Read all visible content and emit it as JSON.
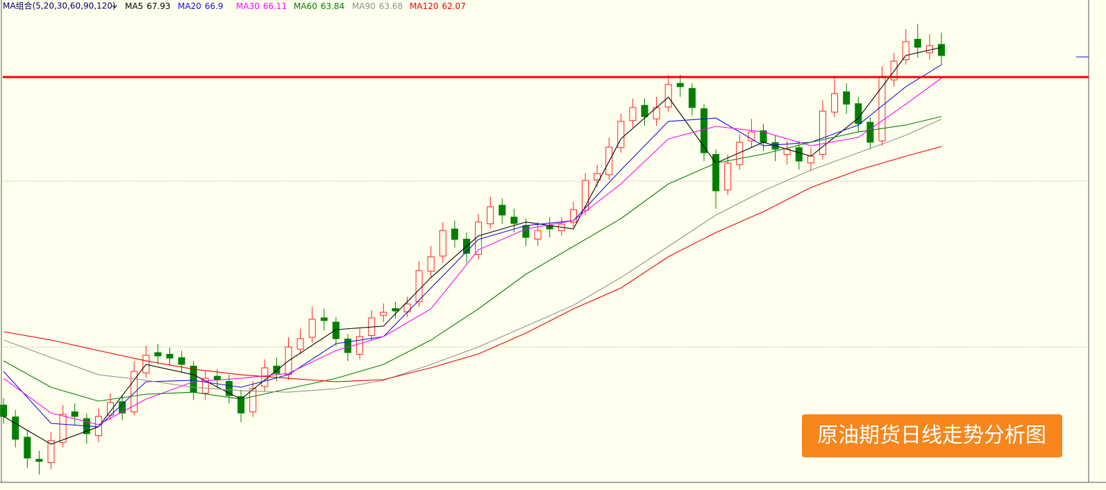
{
  "chart_data": {
    "type": "candlestick",
    "legend_title": "MA组合(5,20,30,60,90,120)",
    "annotation": "原油期货日线走势分析图",
    "up_color": "#ff2020",
    "down_color": "#008000",
    "open": [
      46.8,
      46.1,
      44.9,
      43.6,
      43.4,
      44.6,
      46.4,
      46.0,
      45.0,
      46.2,
      47.0,
      46.4,
      48.7,
      49.9,
      49.8,
      49.6,
      49.1,
      47.5,
      48.5,
      48.2,
      47.3,
      46.4,
      47.9,
      49.1,
      48.6,
      50.1,
      50.8,
      51.95,
      51.7,
      50.7,
      49.8,
      50.9,
      52.1,
      52.5,
      52.3,
      52.9,
      54.7,
      55.6,
      57.2,
      56.6,
      55.7,
      57.5,
      58.6,
      57.9,
      57.4,
      56.6,
      57.4,
      57.1,
      57.6,
      58.3,
      60.1,
      60.4,
      62.0,
      63.6,
      64.5,
      63.7,
      64.4,
      65.8,
      65.5,
      64.3,
      61.6,
      59.5,
      61.0,
      62.4,
      63.0,
      62.3,
      61.6,
      62.0,
      61.1,
      61.6,
      64.1,
      65.3,
      64.6,
      63.5,
      62.4,
      66.0,
      67.2,
      68.4,
      67.6,
      68.1
    ],
    "high": [
      47.2,
      46.5,
      45.3,
      44.1,
      45.2,
      46.8,
      46.9,
      46.3,
      46.6,
      47.5,
      47.4,
      49.4,
      50.3,
      50.4,
      50.2,
      50.0,
      49.4,
      48.8,
      48.9,
      48.6,
      47.7,
      48.2,
      49.5,
      49.6,
      50.8,
      51.3,
      52.6,
      52.5,
      52.0,
      51.0,
      51.3,
      52.4,
      52.8,
      52.9,
      53.2,
      55.3,
      56.2,
      57.6,
      57.7,
      57.0,
      58.1,
      59.1,
      59.0,
      58.4,
      57.8,
      57.6,
      57.9,
      57.9,
      58.8,
      60.5,
      61.0,
      62.6,
      64.0,
      64.9,
      64.9,
      65.0,
      66.3,
      66.3,
      65.8,
      64.6,
      61.9,
      61.6,
      62.8,
      63.7,
      63.4,
      62.7,
      62.4,
      62.4,
      62.0,
      64.8,
      66.2,
      65.8,
      65.0,
      63.8,
      66.8,
      67.6,
      69.0,
      69.3,
      68.7,
      68.8
    ],
    "low": [
      45.7,
      44.3,
      43.1,
      42.7,
      43.0,
      44.3,
      45.6,
      44.5,
      44.6,
      45.9,
      45.9,
      46.2,
      48.4,
      49.2,
      49.1,
      48.7,
      47.1,
      47.1,
      47.8,
      46.9,
      45.8,
      46.1,
      47.6,
      48.2,
      48.3,
      49.8,
      50.5,
      51.2,
      50.3,
      49.4,
      49.5,
      50.6,
      51.7,
      51.9,
      52.0,
      52.6,
      54.3,
      55.2,
      56.1,
      55.2,
      55.4,
      57.2,
      57.5,
      57.0,
      56.2,
      56.2,
      56.7,
      56.8,
      57.3,
      58.0,
      59.7,
      60.1,
      61.7,
      63.2,
      63.3,
      63.3,
      64.1,
      65.0,
      63.9,
      61.2,
      58.4,
      59.2,
      60.7,
      62.0,
      61.8,
      61.2,
      61.0,
      60.7,
      60.6,
      61.3,
      63.8,
      64.0,
      62.9,
      61.9,
      62.1,
      65.6,
      66.9,
      67.3,
      67.2,
      66.9
    ],
    "close": [
      46.13,
      44.78,
      43.67,
      43.47,
      44.7,
      46.25,
      46.13,
      45.11,
      46.13,
      46.95,
      46.33,
      48.79,
      49.74,
      49.7,
      49.57,
      49.2,
      47.56,
      48.38,
      48.3,
      47.36,
      46.33,
      47.77,
      49.0,
      48.67,
      50.23,
      50.72,
      51.87,
      51.79,
      50.72,
      49.9,
      50.84,
      51.95,
      52.28,
      52.36,
      52.77,
      54.74,
      55.56,
      57.11,
      56.58,
      55.76,
      57.61,
      58.51,
      58.02,
      57.52,
      56.7,
      57.11,
      57.2,
      57.48,
      58.34,
      60.06,
      60.47,
      62.03,
      63.55,
      64.37,
      63.83,
      64.37,
      65.72,
      65.6,
      64.37,
      61.7,
      59.45,
      61.09,
      62.32,
      62.93,
      62.32,
      61.91,
      61.91,
      61.21,
      61.5,
      64.16,
      65.19,
      64.57,
      63.42,
      62.32,
      66.13,
      67.11,
      68.26,
      67.93,
      68.02,
      67.44
    ],
    "ma_x": [
      0,
      4,
      8,
      12,
      16,
      20,
      24,
      28,
      32,
      36,
      40,
      44,
      48,
      52,
      56,
      60,
      64,
      68,
      72,
      76,
      79
    ],
    "series": [
      {
        "name": "MA5",
        "color": "#000000",
        "values": [
          46.13,
          44.49,
          45.52,
          49.2,
          48.59,
          47.15,
          49.41,
          51.25,
          51.46,
          54.33,
          56.79,
          57.61,
          57.2,
          62.52,
          64.98,
          61.09,
          62.32,
          61.5,
          63.75,
          67.44,
          67.93
        ]
      },
      {
        "name": "MA20",
        "color": "#1010e0",
        "values": [
          48.79,
          45.72,
          45.52,
          48.18,
          48.26,
          47.85,
          48.59,
          50.43,
          50.84,
          53.71,
          56.58,
          57.4,
          57.69,
          60.68,
          63.55,
          63.75,
          62.11,
          62.32,
          63.34,
          65.6,
          66.9
        ]
      },
      {
        "name": "MA30",
        "color": "#ff00ff",
        "values": [
          48.38,
          46.33,
          45.64,
          47.15,
          48.18,
          48.38,
          48.67,
          50.02,
          50.84,
          52.48,
          55.97,
          57.2,
          57.69,
          59.86,
          62.52,
          63.26,
          62.93,
          62.11,
          62.61,
          64.57,
          66.11
        ]
      },
      {
        "name": "MA60",
        "color": "#008000",
        "values": [
          49.41,
          47.85,
          47.03,
          47.44,
          47.56,
          47.15,
          47.77,
          48.38,
          49.2,
          50.64,
          52.48,
          54.53,
          56.17,
          57.81,
          59.86,
          61.09,
          61.62,
          62.32,
          62.93,
          63.34,
          63.84
        ]
      },
      {
        "name": "MA90",
        "color": "#909090",
        "values": [
          50.64,
          49.61,
          48.59,
          48.26,
          47.85,
          47.65,
          47.56,
          47.77,
          48.26,
          49.2,
          50.23,
          51.46,
          52.69,
          54.33,
          56.17,
          58.02,
          59.45,
          60.68,
          61.7,
          62.73,
          63.68
        ]
      },
      {
        "name": "MA120",
        "color": "#ee0000",
        "values": [
          51.13,
          50.64,
          50.02,
          49.41,
          48.92,
          48.59,
          48.38,
          48.18,
          48.3,
          49.0,
          49.82,
          51.05,
          52.48,
          53.71,
          55.56,
          56.99,
          58.22,
          59.65,
          60.68,
          61.5,
          62.07
        ]
      }
    ],
    "levels": [
      {
        "value": 66.17,
        "color": "#ee0000"
      }
    ],
    "grid_levels": [
      60.02,
      50.23
    ],
    "xlim": [
      -0.3,
      91.4
    ],
    "ylim": [
      42.44,
      70.72
    ]
  }
}
